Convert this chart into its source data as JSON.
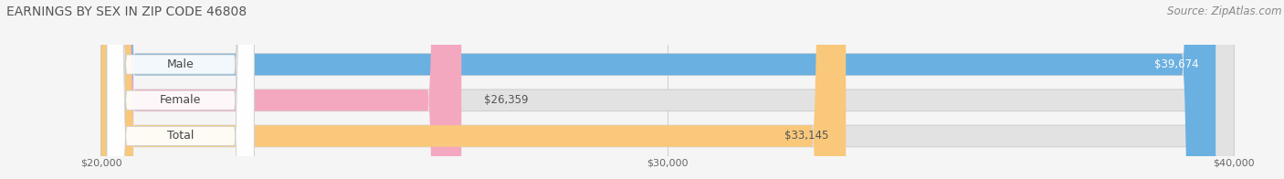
{
  "title": "EARNINGS BY SEX IN ZIP CODE 46808",
  "source": "Source: ZipAtlas.com",
  "categories": [
    "Male",
    "Female",
    "Total"
  ],
  "values": [
    39674,
    26359,
    33145
  ],
  "bar_colors": [
    "#6ab0e0",
    "#f4a8c0",
    "#f9c87a"
  ],
  "label_texts": [
    "$39,674",
    "$26,359",
    "$33,145"
  ],
  "xmin": 20000,
  "xmax": 40000,
  "xticks": [
    20000,
    30000,
    40000
  ],
  "xtick_labels": [
    "$20,000",
    "$30,000",
    "$40,000"
  ],
  "background_color": "#f5f5f5",
  "bar_bg_color": "#e2e2e2",
  "title_fontsize": 10,
  "source_fontsize": 8.5,
  "label_fontsize": 8.5,
  "category_fontsize": 9
}
